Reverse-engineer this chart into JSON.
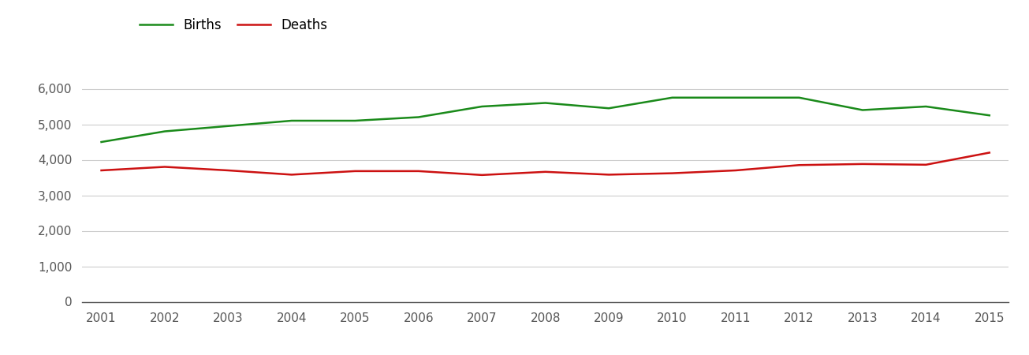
{
  "years": [
    2001,
    2002,
    2003,
    2004,
    2005,
    2006,
    2007,
    2008,
    2009,
    2010,
    2011,
    2012,
    2013,
    2014,
    2015
  ],
  "births": [
    4500,
    4800,
    4950,
    5100,
    5100,
    5200,
    5500,
    5600,
    5450,
    5750,
    5750,
    5750,
    5400,
    5500,
    5250
  ],
  "deaths": [
    3700,
    3800,
    3700,
    3580,
    3680,
    3680,
    3570,
    3660,
    3580,
    3620,
    3700,
    3850,
    3880,
    3860,
    4200
  ],
  "births_color": "#1a8a1a",
  "deaths_color": "#cc1111",
  "background_color": "#ffffff",
  "grid_color": "#cccccc",
  "ylim": [
    0,
    6700
  ],
  "yticks": [
    0,
    1000,
    2000,
    3000,
    4000,
    5000,
    6000
  ],
  "legend_labels": [
    "Births",
    "Deaths"
  ],
  "line_width": 1.8,
  "tick_label_color": "#555555",
  "tick_fontsize": 11
}
